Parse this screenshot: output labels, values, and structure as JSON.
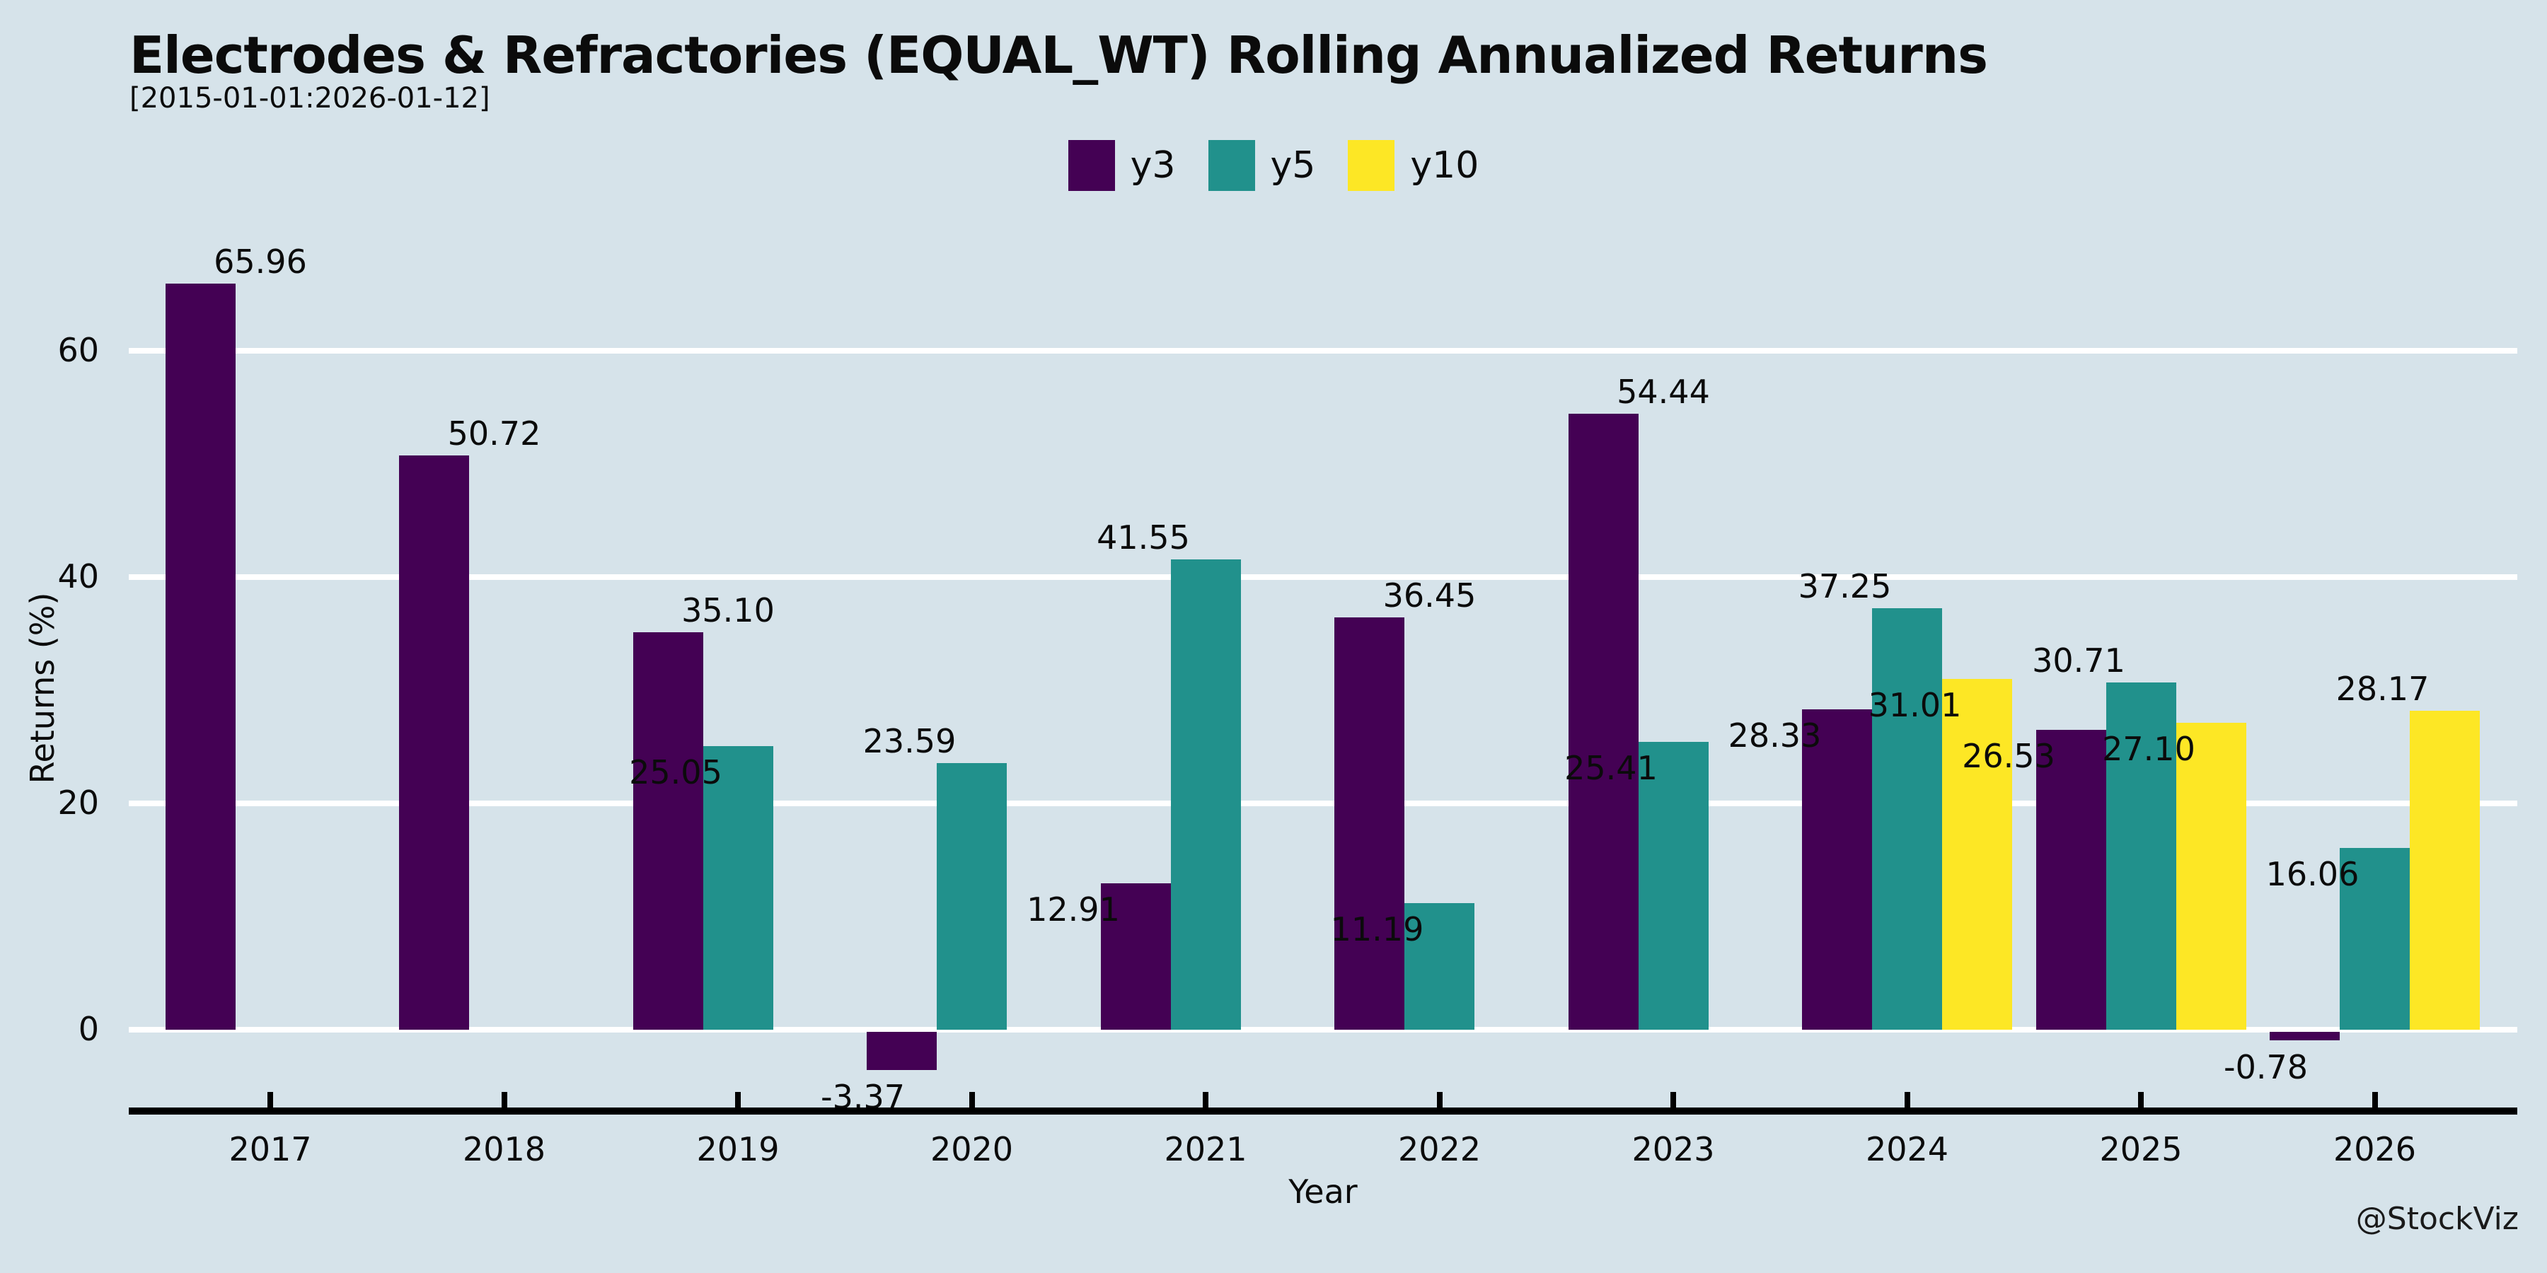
{
  "header": {
    "title": "Electrodes & Refractories (EQUAL_WT) Rolling Annualized Returns",
    "subtitle": "[2015-01-01:2026-01-12]"
  },
  "watermark": "@StockViz",
  "colors": {
    "background": "#d6e3ea",
    "gridline": "#ffffff",
    "axis": "#000000",
    "text": "#0b0b0b",
    "y3": "#440154",
    "y5": "#21918c",
    "y10": "#fde725"
  },
  "chart_data": {
    "type": "bar",
    "title": "Electrodes & Refractories (EQUAL_WT) Rolling Annualized Returns",
    "subtitle": "[2015-01-01:2026-01-12]",
    "xlabel": "Year",
    "ylabel": "Returns (%)",
    "categories": [
      "2017",
      "2018",
      "2019",
      "2020",
      "2021",
      "2022",
      "2023",
      "2024",
      "2025",
      "2026"
    ],
    "series": [
      {
        "name": "y3",
        "color": "#440154",
        "values": [
          65.96,
          50.72,
          35.1,
          -3.37,
          12.91,
          36.45,
          54.44,
          28.33,
          26.53,
          -0.78
        ]
      },
      {
        "name": "y5",
        "color": "#21918c",
        "values": [
          null,
          null,
          25.05,
          23.59,
          41.55,
          11.19,
          25.41,
          37.25,
          30.71,
          16.06
        ]
      },
      {
        "name": "y10",
        "color": "#fde725",
        "values": [
          null,
          null,
          null,
          null,
          null,
          null,
          null,
          31.01,
          27.1,
          28.17
        ]
      }
    ],
    "yticks": [
      0,
      20,
      40,
      60
    ],
    "ylim": [
      -7.7,
      70
    ],
    "grid": true,
    "legend_position": "top",
    "bar_value_labels": true,
    "value_label_format": "0.00"
  }
}
